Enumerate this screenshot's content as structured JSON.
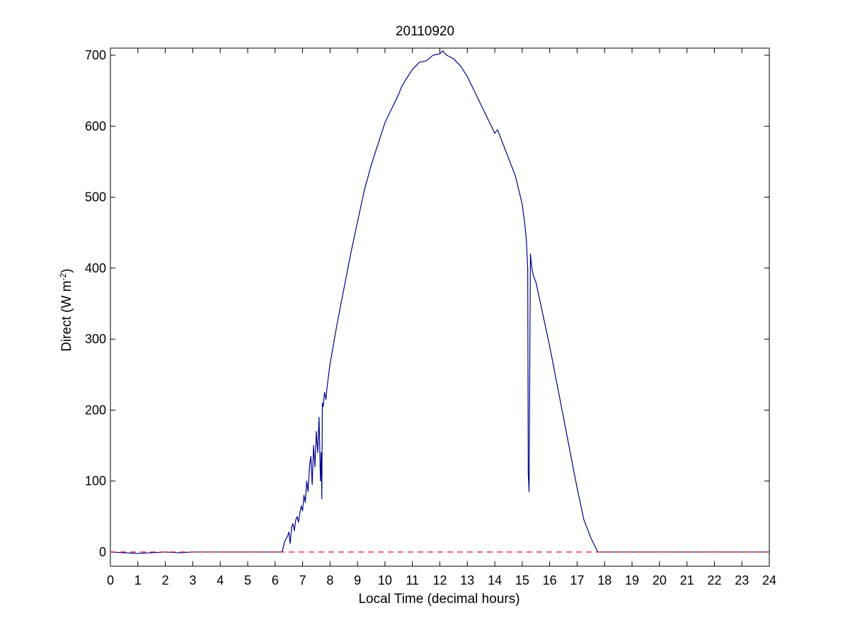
{
  "chart_data": {
    "type": "line",
    "title": "20110920",
    "xlabel": "Local Time (decimal hours)",
    "ylabel": {
      "text": "Direct (W m",
      "superscript": "-2",
      "close": ")"
    },
    "xlim": [
      0,
      24
    ],
    "ylim": [
      -20,
      710
    ],
    "xticks": [
      0,
      1,
      2,
      3,
      4,
      5,
      6,
      7,
      8,
      9,
      10,
      11,
      12,
      13,
      14,
      15,
      16,
      17,
      18,
      19,
      20,
      21,
      22,
      23,
      24
    ],
    "yticks": [
      0,
      100,
      200,
      300,
      400,
      500,
      600,
      700
    ],
    "grid": false,
    "legend": "none",
    "series": [
      {
        "style": "solid",
        "color": "#00008b",
        "x": [
          0.0,
          0.5,
          1.0,
          1.5,
          2.0,
          2.5,
          3.0,
          4.0,
          5.0,
          6.0,
          6.25,
          6.35,
          6.45,
          6.5,
          6.55,
          6.6,
          6.65,
          6.7,
          6.75,
          6.8,
          6.85,
          6.9,
          6.95,
          7.0,
          7.05,
          7.1,
          7.15,
          7.2,
          7.25,
          7.3,
          7.35,
          7.4,
          7.45,
          7.5,
          7.55,
          7.6,
          7.65,
          7.68,
          7.7,
          7.72,
          7.75,
          7.8,
          7.85,
          7.9,
          7.95,
          8.0,
          8.25,
          8.5,
          8.75,
          9.0,
          9.25,
          9.5,
          9.75,
          10.0,
          10.25,
          10.5,
          10.6,
          10.75,
          11.0,
          11.25,
          11.5,
          11.75,
          12.0,
          12.1,
          12.25,
          12.5,
          12.75,
          13.0,
          13.25,
          13.5,
          13.75,
          14.0,
          14.1,
          14.25,
          14.5,
          14.75,
          15.0,
          15.1,
          15.15,
          15.2,
          15.22,
          15.25,
          15.28,
          15.3,
          15.35,
          15.4,
          15.5,
          15.75,
          16.0,
          16.25,
          16.5,
          16.75,
          17.0,
          17.25,
          17.5,
          17.75,
          17.8,
          18.0,
          18.5,
          19.0,
          19.5,
          20.0,
          20.5,
          21.0,
          21.5,
          22.0,
          22.5,
          23.0,
          23.5,
          24.0
        ],
        "y": [
          0,
          -1,
          -2,
          -1,
          0,
          -1,
          0,
          0,
          0,
          0,
          0,
          15,
          22,
          28,
          12,
          35,
          40,
          30,
          45,
          50,
          42,
          55,
          65,
          58,
          80,
          70,
          100,
          85,
          120,
          135,
          95,
          150,
          120,
          170,
          140,
          190,
          100,
          140,
          75,
          210,
          205,
          225,
          215,
          235,
          250,
          265,
          320,
          370,
          420,
          465,
          510,
          545,
          575,
          605,
          625,
          645,
          655,
          665,
          680,
          690,
          692,
          700,
          702,
          706,
          700,
          695,
          685,
          670,
          650,
          630,
          610,
          590,
          595,
          580,
          555,
          530,
          490,
          460,
          440,
          400,
          110,
          85,
          300,
          420,
          400,
          390,
          380,
          335,
          290,
          240,
          190,
          140,
          90,
          45,
          20,
          0,
          0,
          0,
          0,
          0,
          0,
          0,
          0,
          0,
          0,
          0,
          0,
          0,
          0,
          0
        ]
      },
      {
        "style": "dashed",
        "color": "#cc0000",
        "x": [
          0,
          24
        ],
        "y": [
          0,
          0
        ]
      }
    ]
  }
}
